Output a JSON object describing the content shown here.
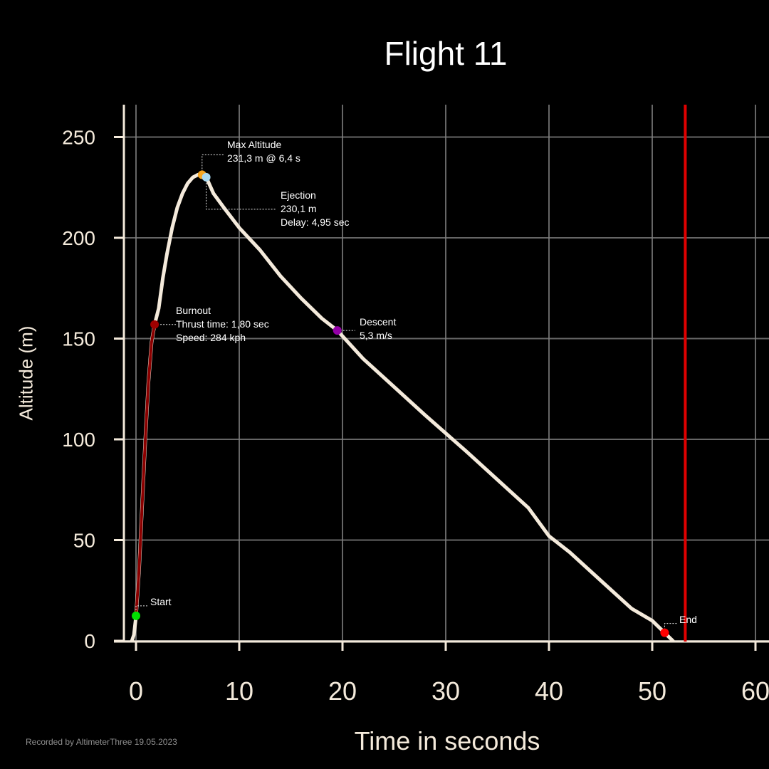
{
  "colors": {
    "background": "#000000",
    "axis": "#f4eadb",
    "grid": "#808080",
    "altitude_curve": "#f4eadb",
    "thrust_curve": "#8b0000",
    "end_line": "#e00000",
    "start_marker": "#00e000",
    "burnout_marker": "#a00000",
    "max_altitude_marker": "#f5a623",
    "ejection_marker": "#a8d8f0",
    "descent_marker": "#9400a8",
    "end_marker": "#ff0000"
  },
  "chart_data": {
    "type": "line",
    "title": "Flight 11",
    "xlabel": "Time in seconds",
    "ylabel": "Altitude (m)",
    "xlim": [
      -2,
      61
    ],
    "ylim": [
      -5,
      265
    ],
    "xticks": [
      0,
      10,
      20,
      30,
      40,
      50,
      60
    ],
    "yticks": [
      0,
      50,
      100,
      150,
      200,
      250
    ],
    "grid": true,
    "end_line_x": 53.2,
    "series": [
      {
        "role": "thrust",
        "x": [
          0.0,
          0.3,
          0.6,
          0.9,
          1.2,
          1.5,
          1.8
        ],
        "y": [
          12,
          35,
          68,
          100,
          128,
          148,
          157
        ]
      },
      {
        "role": "altitude",
        "x": [
          -0.4,
          -0.2,
          0.0,
          0.3,
          0.6,
          0.9,
          1.2,
          1.5,
          1.8,
          2.2,
          2.6,
          3.0,
          3.5,
          4.0,
          4.5,
          5.0,
          5.5,
          6.0,
          6.4,
          6.8,
          7.5,
          8.5,
          10,
          12,
          14,
          16,
          18,
          19.5,
          22,
          25,
          28,
          30,
          32,
          35,
          38,
          40,
          42,
          45,
          48,
          50,
          51.2,
          52.0
        ],
        "y": [
          0,
          3,
          12,
          35,
          68,
          100,
          128,
          148,
          157,
          165,
          180,
          192,
          205,
          215,
          222,
          227,
          230,
          231.3,
          231.3,
          230.1,
          222,
          215,
          205,
          194,
          181,
          170,
          160,
          154,
          140,
          126,
          112,
          103,
          94,
          80,
          66,
          52,
          44,
          30,
          16,
          10,
          4,
          0
        ]
      }
    ],
    "annotations": [
      {
        "name": "start",
        "x": 0.0,
        "y": 12.4,
        "lines": [
          "Start"
        ]
      },
      {
        "name": "burnout",
        "x": 1.8,
        "y": 157,
        "lines": [
          "Burnout",
          "Thrust time: 1,80 sec",
          "Speed: 284 kph"
        ]
      },
      {
        "name": "max-altitude",
        "x": 6.4,
        "y": 231.3,
        "lines": [
          "Max Altitude",
          "231,3 m @ 6,4 s"
        ]
      },
      {
        "name": "ejection",
        "x": 6.8,
        "y": 230.1,
        "lines": [
          "Ejection",
          "230,1 m",
          "Delay:  4,95 sec"
        ]
      },
      {
        "name": "descent",
        "x": 19.5,
        "y": 154,
        "lines": [
          "Descent",
          "5,3 m/s"
        ]
      },
      {
        "name": "end",
        "x": 51.2,
        "y": 4,
        "lines": [
          "End"
        ]
      }
    ]
  },
  "footer": "Recorded by AltimeterThree  19.05.2023"
}
